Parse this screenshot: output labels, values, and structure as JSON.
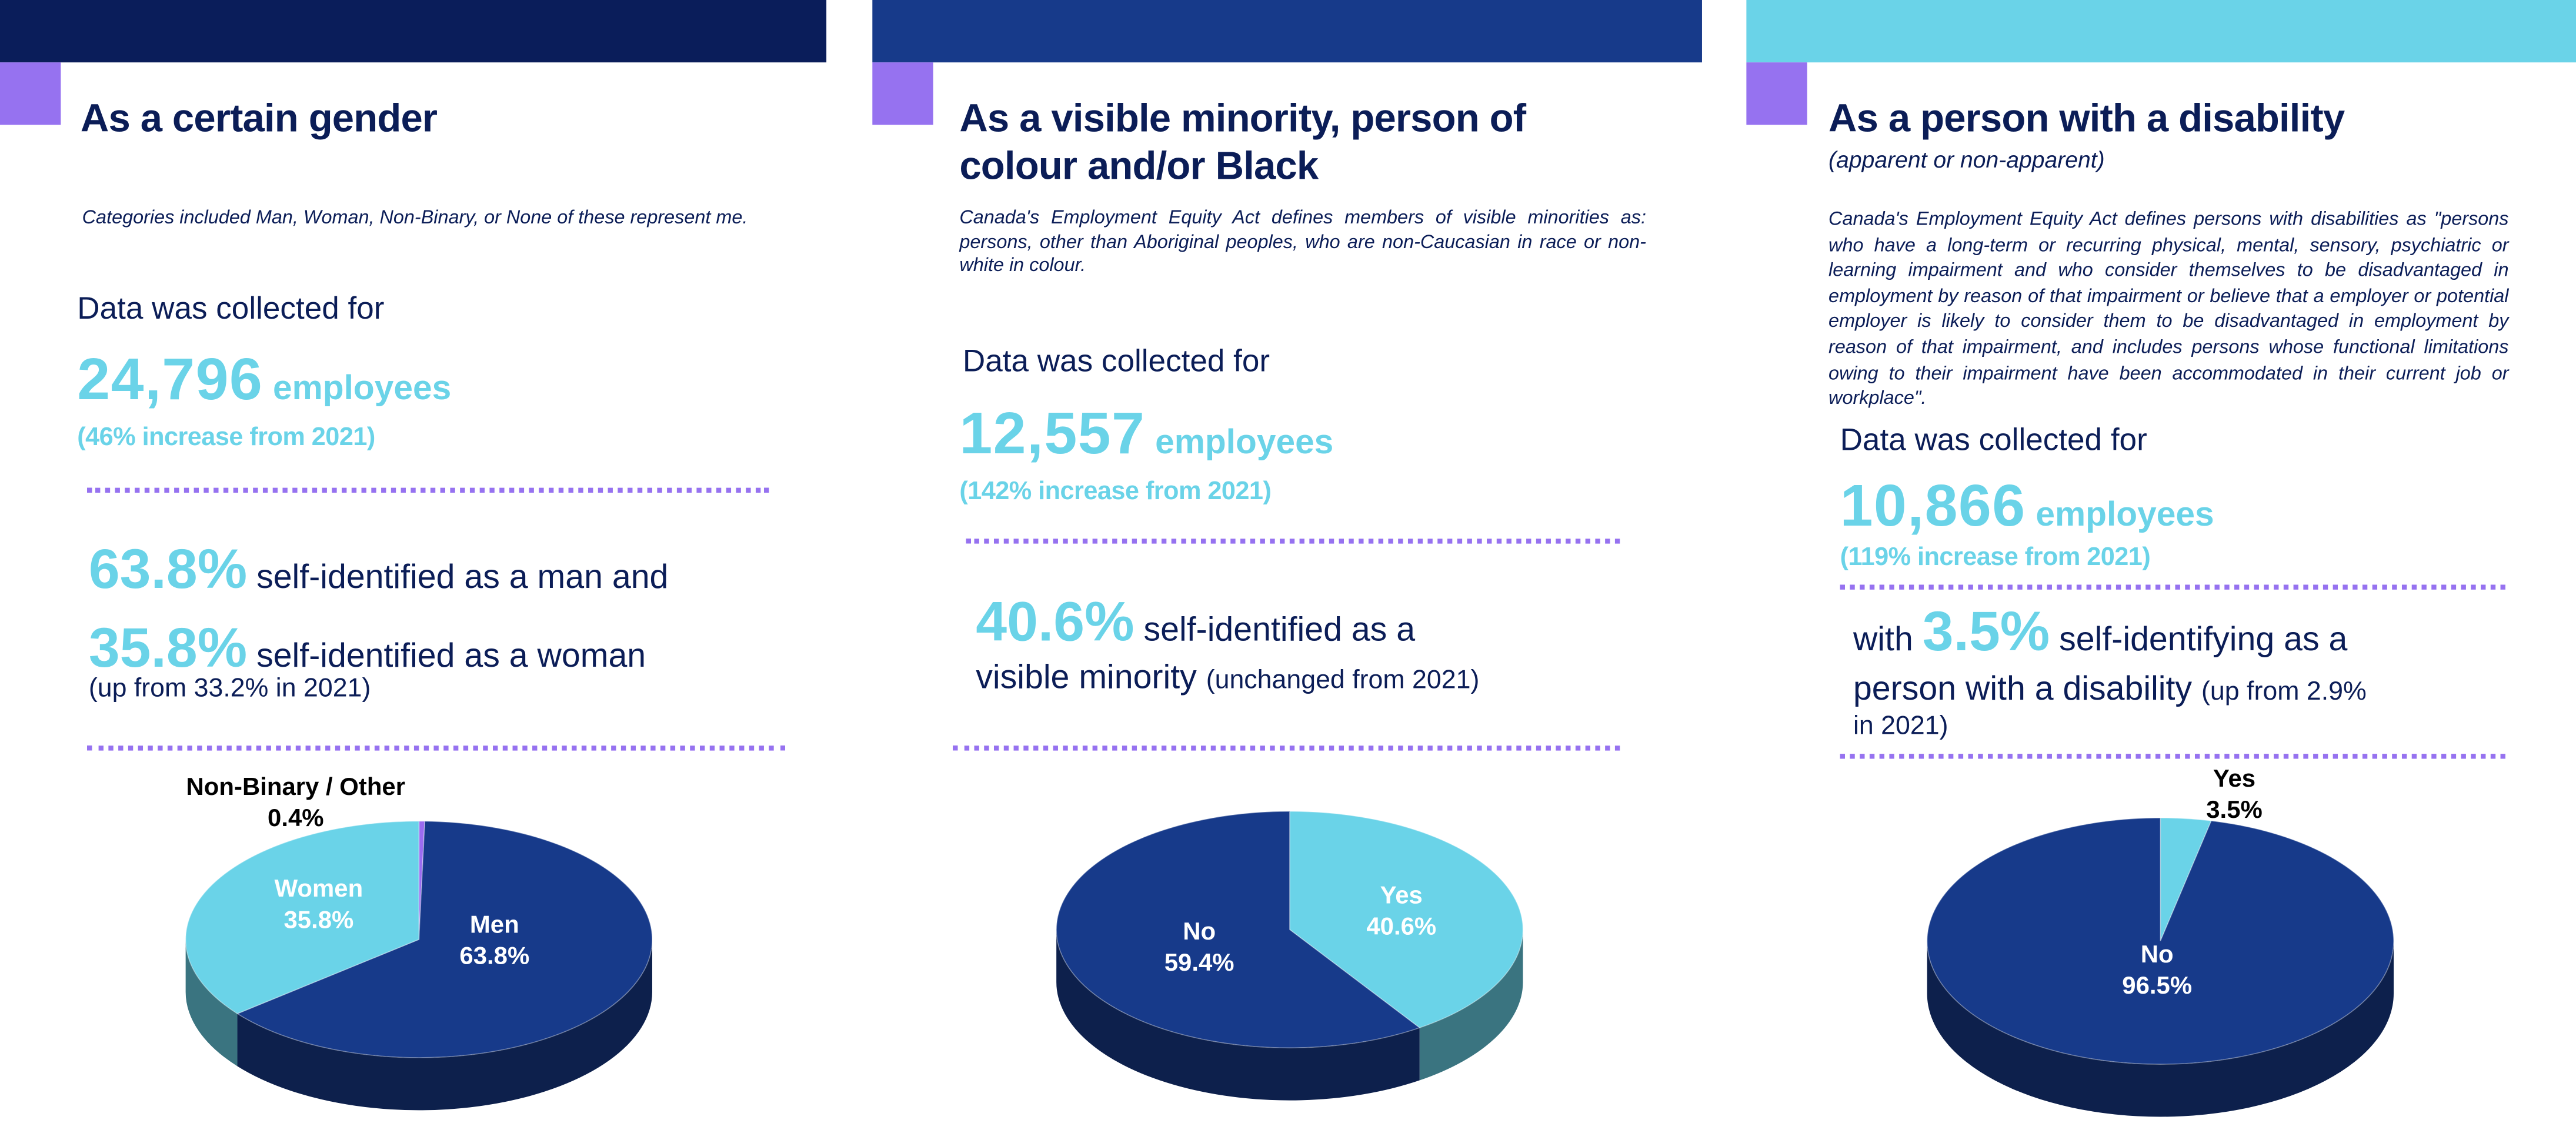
{
  "colors": {
    "navy": "#0b1d57",
    "bar1": "#0a1d5a",
    "bar2": "#173a8a",
    "bar3": "#6ad3e8",
    "accent_purple": "#9672f0",
    "cyan": "#6ad3e8"
  },
  "panels": [
    {
      "title_lines": [
        "As a certain gender"
      ],
      "note": "Categories included Man, Woman, Non-Binary, or None of these represent me.",
      "collected_label": "Data was collected for",
      "count": "24,796",
      "count_unit": "employees",
      "increase": "(46% increase from 2021)",
      "stat1_pct": "63.8%",
      "stat1_text": "self-identified as a man and",
      "stat2_pct": "35.8%",
      "stat2_text": "self-identified as a woman",
      "stat3_text": "(up from 33.2% in 2021)"
    },
    {
      "title_lines": [
        "As a visible minority, person of",
        "colour and/or Black"
      ],
      "note": "Canada's Employment Equity Act defines members of visible minorities as: persons, other than Aboriginal peoples, who are non-Caucasian in race or non-white in colour.",
      "collected_label": "Data was collected for",
      "count": "12,557",
      "count_unit": "employees",
      "increase": "(142% increase from 2021)",
      "stat1_pct": "40.6%",
      "stat1_text": "self-identified as a",
      "stat2_text": "visible minority",
      "stat2_small": "(unchanged from 2021)"
    },
    {
      "title_lines": [
        "As a person with a disability"
      ],
      "subtitle": "(apparent or non-apparent)",
      "note": "Canada's Employment Equity Act defines persons with disabilities as \"persons who have a long-term or recurring physical, mental, sensory, psychiatric or learning impairment and who consider themselves to be disadvantaged in employment by reason of that impairment or believe that a employer or potential employer is likely to consider them to be disadvantaged in employment by reason of that impairment, and includes persons whose functional limitations owing to their impairment have been accommodated in their current job or workplace\".",
      "collected_label": "Data was collected for",
      "count": "10,866",
      "count_unit": "employees",
      "increase": "(119% increase from 2021)",
      "stat1_pre": "with",
      "stat1_pct": "3.5%",
      "stat1_text": "self-identifying as a",
      "stat2_text": "person with a disability",
      "stat2_small": "(up from 2.9%",
      "stat3_text": "in 2021)"
    }
  ],
  "chart_data": [
    {
      "type": "pie",
      "style": "3d",
      "start": "top",
      "direction": "clockwise",
      "categories": [
        "Non-Binary / Other",
        "Men",
        "Women"
      ],
      "values": [
        0.4,
        63.8,
        35.8
      ],
      "labels": [
        "0.4%",
        "63.8%",
        "35.8%"
      ],
      "colors": [
        "#9b6cf0",
        "#173a8a",
        "#6ad3e8"
      ]
    },
    {
      "type": "pie",
      "style": "3d",
      "start": "top",
      "direction": "clockwise",
      "categories": [
        "Yes",
        "No"
      ],
      "values": [
        40.6,
        59.4
      ],
      "labels": [
        "40.6%",
        "59.4%"
      ],
      "colors": [
        "#6ad3e8",
        "#173a8a"
      ]
    },
    {
      "type": "pie",
      "style": "3d",
      "start": "top",
      "direction": "clockwise",
      "categories": [
        "Yes",
        "No"
      ],
      "values": [
        3.5,
        96.5
      ],
      "labels": [
        "3.5%",
        "96.5%"
      ],
      "colors": [
        "#6ad3e8",
        "#173a8a"
      ]
    }
  ]
}
